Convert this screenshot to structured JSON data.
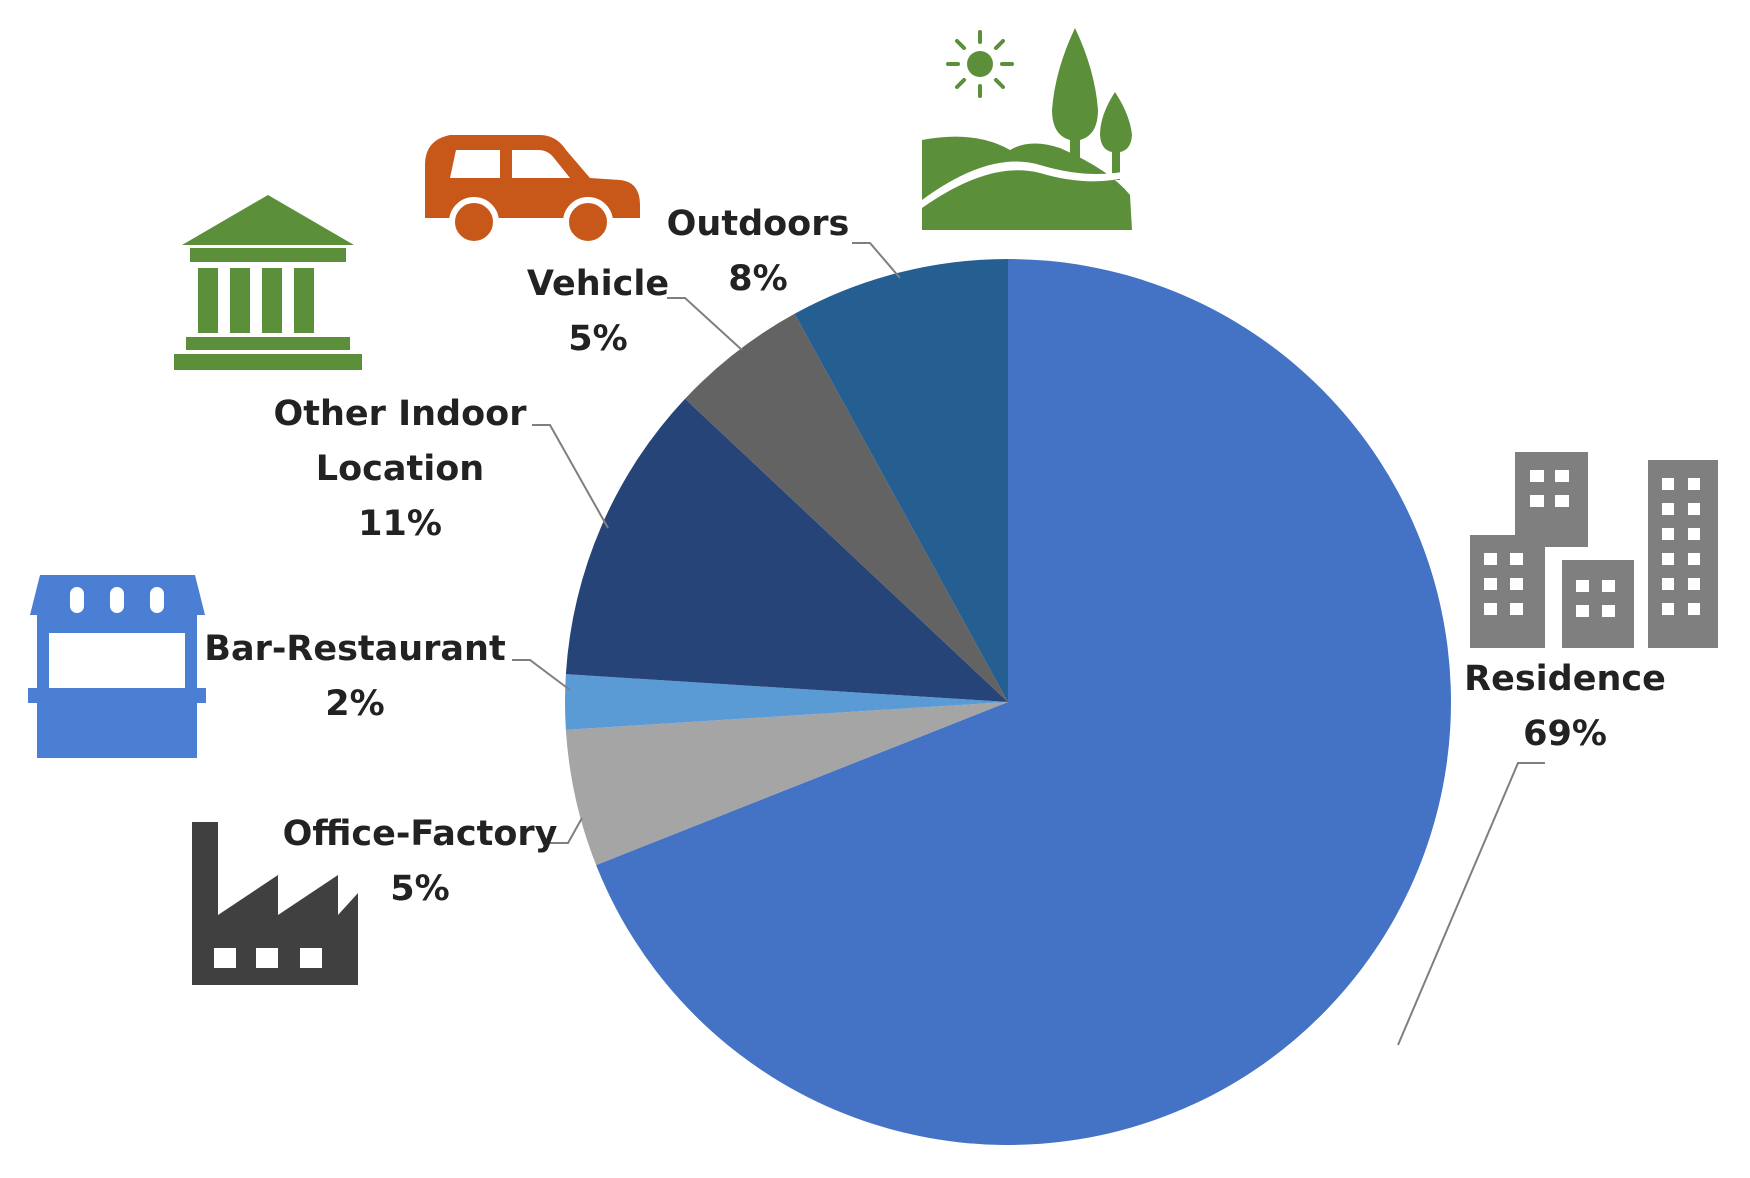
{
  "chart_data": {
    "type": "pie",
    "slices": [
      {
        "label": "Residence",
        "value_label": "69%",
        "value": 69,
        "color": "#4472C4"
      },
      {
        "label": "Office-Factory",
        "value_label": "5%",
        "value": 5,
        "color": "#A5A5A5"
      },
      {
        "label": "Bar-Restaurant",
        "value_label": "2%",
        "value": 2,
        "color": "#5B9BD5"
      },
      {
        "label": "Other Indoor Location",
        "label_lines": [
          "Other Indoor",
          "Location"
        ],
        "value_label": "11%",
        "value": 11,
        "color": "#264478"
      },
      {
        "label": "Vehicle",
        "value_label": "5%",
        "value": 5,
        "color": "#636363"
      },
      {
        "label": "Outdoors",
        "value_label": "8%",
        "value": 8,
        "color": "#255E91"
      }
    ],
    "start": "12 o'clock",
    "direction": "clockwise"
  },
  "icons": {
    "residence": {
      "name": "buildings-icon",
      "color": "#7f7f7f"
    },
    "office_factory": {
      "name": "factory-icon",
      "color": "#404040"
    },
    "bar_restaurant": {
      "name": "storefront-icon",
      "color": "#4a7fd4"
    },
    "other_indoor": {
      "name": "public-building-icon",
      "color": "#5b8f3a"
    },
    "vehicle": {
      "name": "car-icon",
      "color": "#c8581a"
    },
    "outdoors": {
      "name": "landscape-icon",
      "color": "#5b8f3a"
    }
  }
}
